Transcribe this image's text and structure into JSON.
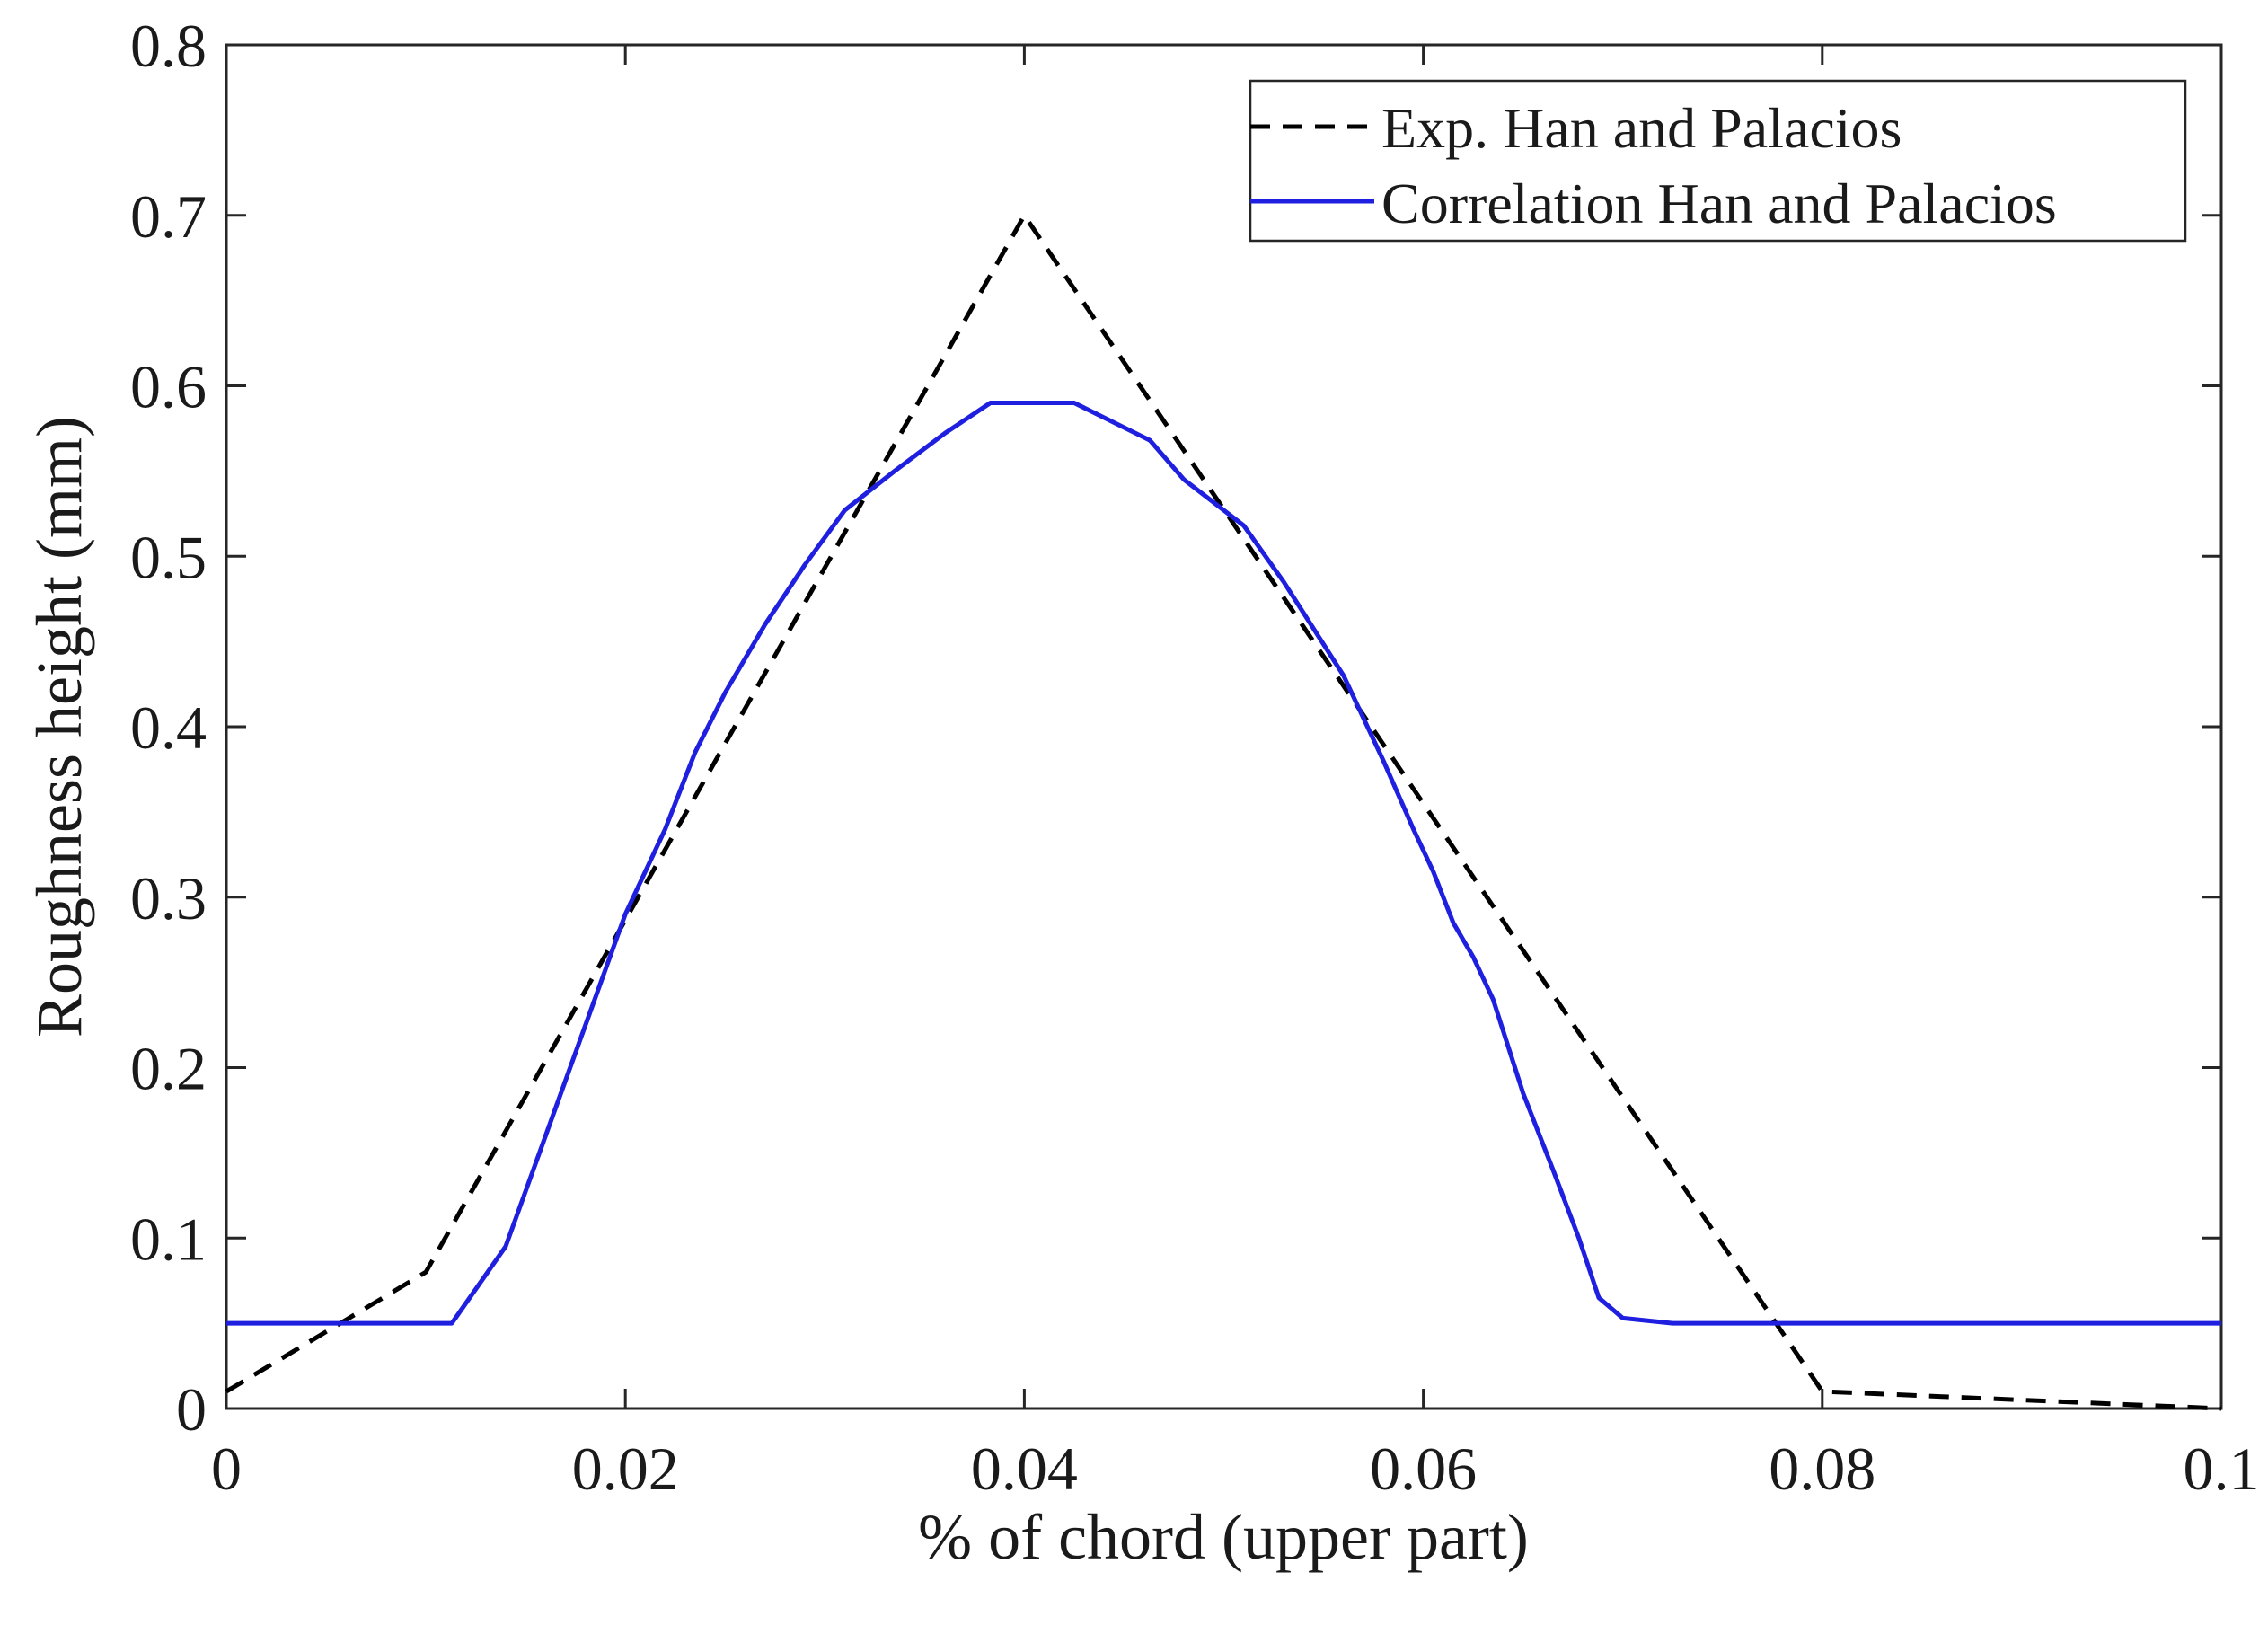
{
  "chart_data": {
    "type": "line",
    "title": "",
    "xlabel": "% of chord (upper part)",
    "ylabel": "Roughness height (mm)",
    "xlim": [
      0,
      0.1
    ],
    "ylim": [
      0,
      0.8
    ],
    "xticks": [
      0,
      0.02,
      0.04,
      0.06,
      0.08,
      0.1
    ],
    "yticks": [
      0,
      0.1,
      0.2,
      0.3,
      0.4,
      0.5,
      0.6,
      0.7,
      0.8
    ],
    "xtick_labels": [
      "0",
      "0.02",
      "0.04",
      "0.06",
      "0.08",
      "0.1"
    ],
    "ytick_labels": [
      "0",
      "0.1",
      "0.2",
      "0.3",
      "0.4",
      "0.5",
      "0.6",
      "0.7",
      "0.8"
    ],
    "grid": false,
    "legend_position": "top-right",
    "series": [
      {
        "name": "Exp. Han and Palacios",
        "color": "#000000",
        "style": "dashed",
        "x": [
          0,
          0.01,
          0.04,
          0.08,
          0.1
        ],
        "y": [
          0.01,
          0.08,
          0.7,
          0.01,
          0.0
        ]
      },
      {
        "name": "Correlation Han and Palacios",
        "color": "#1f1fe0",
        "style": "solid",
        "x": [
          0,
          0.0113,
          0.014,
          0.016,
          0.018,
          0.02,
          0.022,
          0.0235,
          0.025,
          0.027,
          0.029,
          0.031,
          0.0335,
          0.036,
          0.0383,
          0.04,
          0.0425,
          0.0463,
          0.048,
          0.051,
          0.053,
          0.056,
          0.058,
          0.0595,
          0.0605,
          0.0615,
          0.0625,
          0.0635,
          0.065,
          0.0665,
          0.0678,
          0.0688,
          0.07,
          0.0725,
          0.078,
          0.1
        ],
        "y": [
          0.05,
          0.05,
          0.095,
          0.16,
          0.225,
          0.29,
          0.34,
          0.385,
          0.42,
          0.46,
          0.495,
          0.527,
          0.55,
          0.572,
          0.59,
          0.59,
          0.59,
          0.568,
          0.545,
          0.518,
          0.485,
          0.43,
          0.38,
          0.34,
          0.315,
          0.285,
          0.265,
          0.24,
          0.185,
          0.14,
          0.1,
          0.065,
          0.053,
          0.05,
          0.05,
          0.05
        ]
      }
    ]
  }
}
